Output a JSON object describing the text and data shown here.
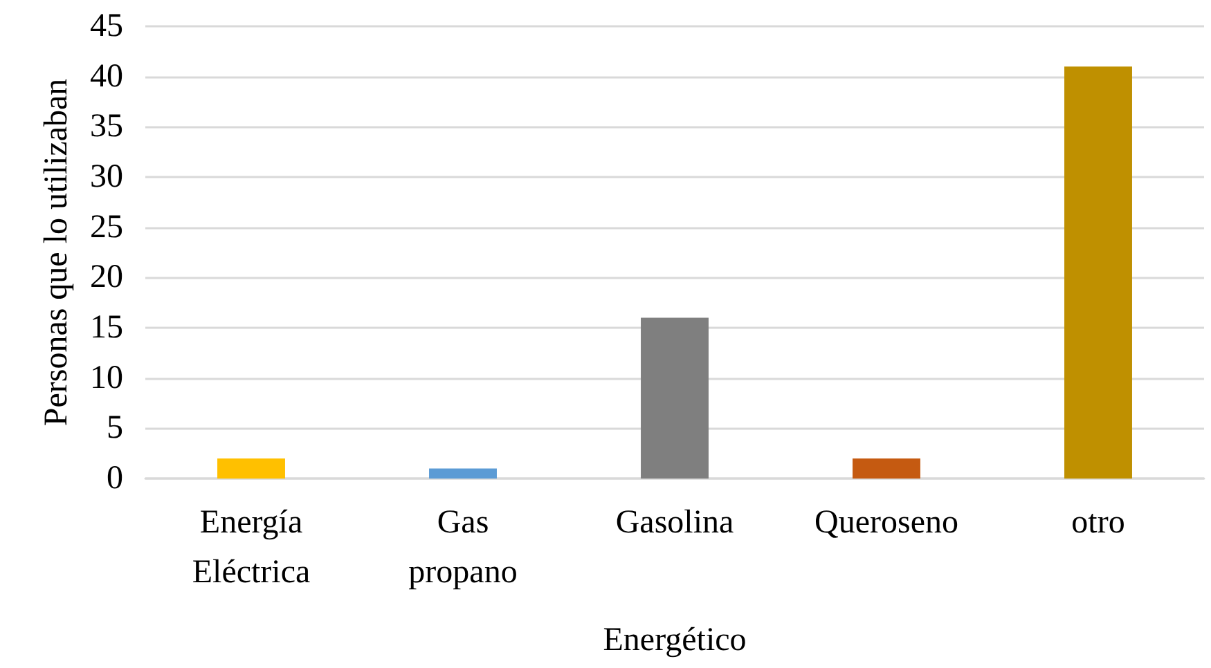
{
  "chart_data": {
    "type": "bar",
    "xlabel": "Energético",
    "ylabel": "Personas que lo utilizaban",
    "categories": [
      "Energía\nEléctrica",
      "Gas\npropano",
      "Gasolina",
      "Queroseno",
      "otro"
    ],
    "values": [
      2,
      1,
      16,
      2,
      41
    ],
    "colors": [
      "#ffc000",
      "#5b9bd5",
      "#7f7f7f",
      "#c55a11",
      "#bf9000"
    ],
    "ylim": [
      0,
      45
    ],
    "yticks": [
      0,
      5,
      10,
      15,
      20,
      25,
      30,
      35,
      40,
      45
    ],
    "grid": "y"
  }
}
